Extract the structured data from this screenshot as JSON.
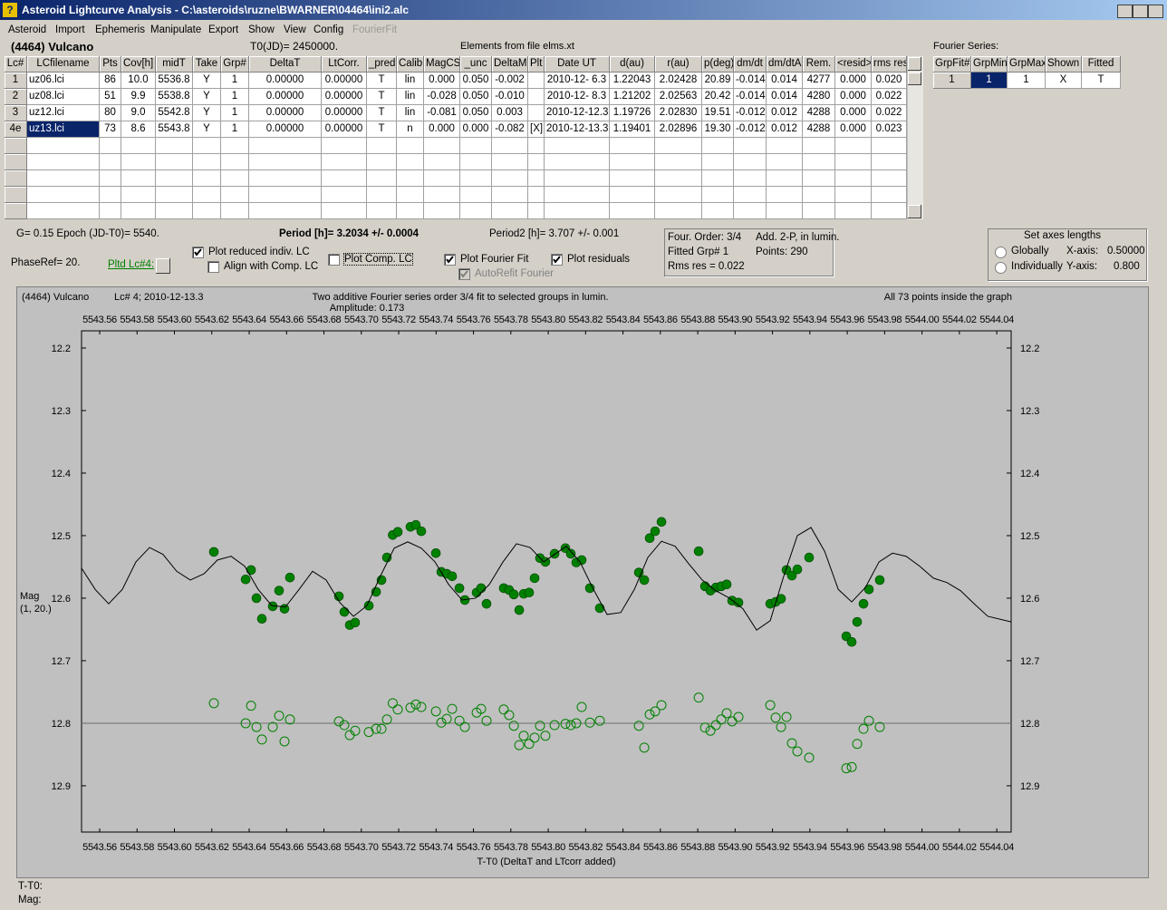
{
  "window": {
    "title": "Asteroid Lightcurve Analysis - C:\\asteroids\\ruzne\\BWARNER\\04464\\ini2.alc"
  },
  "menu": [
    "Asteroid",
    "Import",
    "Ephemeris",
    "Manipulate",
    "Export",
    "Show",
    "View",
    "Config",
    "FourierFit"
  ],
  "header": {
    "asteroid": "(4464) Vulcano",
    "t0": "T0(JD)= 2450000.",
    "elements": "Elements from file elms.xt"
  },
  "table": {
    "columns": [
      "Lc#",
      "LCfilename",
      "Pts",
      "Cov[h]",
      "midT",
      "Take",
      "Grp#",
      "DeltaT",
      "LtCorr.",
      "_pred",
      "Calib",
      "MagCS",
      "_unc",
      "DeltaM",
      "Plt",
      "Date UT",
      "d(au)",
      "r(au)",
      "p(deg)",
      "dm/dt",
      "dm/dtA",
      "Rem.",
      "<resid>",
      "rms res"
    ],
    "rows": [
      [
        "1",
        "uz06.lci",
        "86",
        "10.0",
        "5536.8",
        "Y",
        "1",
        "0.00000",
        "0.00000",
        "T",
        "lin",
        "0.000",
        "0.050",
        "-0.002",
        null,
        "2010-12- 6.3",
        "1.22043",
        "2.02428",
        "20.89",
        "-0.014",
        "0.014",
        "4277",
        "0.000",
        "0.020"
      ],
      [
        "2",
        "uz08.lci",
        "51",
        "9.9",
        "5538.8",
        "Y",
        "1",
        "0.00000",
        "0.00000",
        "T",
        "lin",
        "-0.028",
        "0.050",
        "-0.010",
        null,
        "2010-12- 8.3",
        "1.21202",
        "2.02563",
        "20.42",
        "-0.014",
        "0.014",
        "4280",
        "0.000",
        "0.022"
      ],
      [
        "3",
        "uz12.lci",
        "80",
        "9.0",
        "5542.8",
        "Y",
        "1",
        "0.00000",
        "0.00000",
        "T",
        "lin",
        "-0.081",
        "0.050",
        "0.003",
        null,
        "2010-12-12.3",
        "1.19726",
        "2.02830",
        "19.51",
        "-0.012",
        "0.012",
        "4288",
        "0.000",
        "0.022"
      ],
      [
        "4e",
        "uz13.lci",
        "73",
        "8.6",
        "5543.8",
        "Y",
        "1",
        "0.00000",
        "0.00000",
        "T",
        "n",
        "0.000",
        "0.000",
        "-0.082",
        "[X]",
        "2010-12-13.3",
        "1.19401",
        "2.02896",
        "19.30",
        "-0.012",
        "0.012",
        "4288",
        "0.000",
        "0.023"
      ]
    ]
  },
  "fourier": {
    "title": "Fourier Series:",
    "columns": [
      "GrpFit#",
      "GrpMin",
      "GrpMax",
      "Shown",
      "Fitted"
    ],
    "rows": [
      [
        "1",
        "1",
        "1",
        "X",
        "T"
      ]
    ]
  },
  "controls": {
    "g_epoch": "G= 0.15   Epoch (JD-T0)= 5540.",
    "period": "Period [h]= 3.2034 +/- 0.0004",
    "period2": "Period2 [h]= 3.707 +/- 0.001",
    "phaseref": "PhaseRef= 20.",
    "pltd": "Pltd Lc#4:",
    "checkboxes": [
      {
        "label": "Plot reduced indiv. LC",
        "checked": true
      },
      {
        "label": "Align with Comp. LC",
        "checked": false
      },
      {
        "label": "Plot Comp. LC",
        "checked": false
      },
      {
        "label": "Plot Fourier Fit",
        "checked": true
      },
      {
        "label": "Plot residuals",
        "checked": true
      },
      {
        "label": "AutoRefit Fourier",
        "checked": true
      }
    ]
  },
  "info": [
    "Four. Order:  3/4",
    "Add. 2-P, in lumin.",
    "Fitted Grp# 1",
    "Points: 290",
    "Rms res     = 0.022"
  ],
  "axes_box": {
    "title": "Set axes lengths",
    "globally": "Globally",
    "individually": "Individually",
    "x_label": "X-axis:",
    "x_value": "0.50000",
    "y_label": "Y-axis:",
    "y_value": "0.800"
  },
  "chart_data": {
    "type": "scatter",
    "title": "Two additive Fourier series order 3/4 fit to selected groups in lumin.",
    "subtitle": "Amplitude: 0.173",
    "annotations": [
      "(4464) Vulcano",
      "Lc# 4; 2010-12-13.3",
      "All 73 points inside the graph"
    ],
    "y_label": [
      "Mag",
      "(1, 20.)"
    ],
    "x_label": "T-T0 (DeltaT and LTcorr added)",
    "xlim": [
      5543.5503,
      5544.0477
    ],
    "ylim": [
      12.1725,
      12.974
    ],
    "y_inverted": true,
    "xticks": [
      5543.56,
      5543.58,
      {
        "value": 5543.6,
        "label": "5543.60"
      },
      5543.62,
      5543.64,
      5543.66,
      5543.68,
      {
        "value": 5543.7,
        "label": "5543.70"
      },
      5543.72,
      5543.74,
      5543.76,
      5543.78,
      {
        "value": 5543.8,
        "label": "5543.80"
      },
      5543.82,
      5543.84,
      5543.86,
      5543.88,
      {
        "value": 5543.9,
        "label": "5543.90"
      },
      5543.92,
      5543.94,
      5543.96,
      5543.98,
      {
        "value": 5544.0,
        "label": "5544.00"
      },
      5544.02,
      5544.04
    ],
    "yticks": [
      12.2,
      12.3,
      12.4,
      12.5,
      12.6,
      12.7,
      12.8,
      12.9
    ],
    "reference_line": 12.8,
    "series": [
      {
        "style": "filled",
        "color": "#008000",
        "x": [
          5543.6211,
          5543.6381,
          5543.641,
          5543.6439,
          5543.6468,
          5543.6526,
          5543.656,
          5543.6589,
          5543.6618,
          5543.688,
          5543.6909,
          5543.6938,
          5543.6967,
          5543.704,
          5543.7079,
          5543.7108,
          5543.7137,
          5543.7168,
          5543.7195,
          5543.7263,
          5543.7292,
          5543.7321,
          5543.7399,
          5543.7428,
          5543.7457,
          5543.7486,
          5543.7525,
          5543.7554,
          5543.7617,
          5543.7641,
          5543.767,
          5543.7762,
          5543.7791,
          5543.7816,
          5543.7845,
          5543.7869,
          5543.7898,
          5543.7927,
          5543.7956,
          5543.7985,
          5543.8034,
          5543.8092,
          5543.8121,
          5543.815,
          5543.8179,
          5543.8223,
          5543.8276,
          5543.8485,
          5543.8514,
          5543.8543,
          5543.8572,
          5543.8606,
          5543.8805,
          5543.8839,
          5543.8868,
          5543.8897,
          5543.8926,
          5543.8955,
          5543.8984,
          5543.9018,
          5543.9188,
          5543.9217,
          5543.9246,
          5543.9275,
          5543.9304,
          5543.9333,
          5543.9396,
          5543.9595,
          5543.9624,
          5543.9653,
          5543.9687,
          5543.9716,
          5543.9774
        ],
        "values": [
          12.526,
          12.57,
          12.555,
          12.6,
          12.633,
          12.613,
          12.588,
          12.617,
          12.567,
          12.597,
          12.622,
          12.643,
          12.639,
          12.612,
          12.59,
          12.571,
          12.535,
          12.499,
          12.494,
          12.486,
          12.483,
          12.493,
          12.528,
          12.558,
          12.561,
          12.565,
          12.584,
          12.603,
          12.591,
          12.584,
          12.609,
          12.584,
          12.587,
          12.594,
          12.619,
          12.593,
          12.591,
          12.568,
          12.536,
          12.542,
          12.529,
          12.52,
          12.529,
          12.543,
          12.539,
          12.584,
          12.616,
          12.559,
          12.571,
          12.504,
          12.493,
          12.478,
          12.525,
          12.581,
          12.588,
          12.583,
          12.581,
          12.578,
          12.604,
          12.607,
          12.609,
          12.606,
          12.601,
          12.555,
          12.564,
          12.554,
          12.535,
          12.661,
          12.67,
          12.638,
          12.609,
          12.586,
          12.571
        ]
      },
      {
        "style": "hollow",
        "color": "#008000",
        "x": [
          5543.6211,
          5543.6381,
          5543.641,
          5543.6439,
          5543.6468,
          5543.6526,
          5543.656,
          5543.6589,
          5543.6618,
          5543.688,
          5543.6909,
          5543.6938,
          5543.6967,
          5543.704,
          5543.7079,
          5543.7108,
          5543.7137,
          5543.7168,
          5543.7195,
          5543.7263,
          5543.7292,
          5543.7321,
          5543.7399,
          5543.7428,
          5543.7457,
          5543.7486,
          5543.7525,
          5543.7554,
          5543.7617,
          5543.7641,
          5543.767,
          5543.7762,
          5543.7791,
          5543.7816,
          5543.7845,
          5543.7869,
          5543.7898,
          5543.7927,
          5543.7956,
          5543.7985,
          5543.8034,
          5543.8092,
          5543.8121,
          5543.815,
          5543.8179,
          5543.8223,
          5543.8276,
          5543.8485,
          5543.8514,
          5543.8543,
          5543.8572,
          5543.8606,
          5543.8805,
          5543.8839,
          5543.8868,
          5543.8897,
          5543.8926,
          5543.8955,
          5543.8984,
          5543.9018,
          5543.9188,
          5543.9217,
          5543.9246,
          5543.9275,
          5543.9304,
          5543.9333,
          5543.9396,
          5543.9595,
          5543.9624,
          5543.9653,
          5543.9687,
          5543.9716,
          5543.9774
        ],
        "values": [
          12.768,
          12.8,
          12.772,
          12.806,
          12.826,
          12.806,
          12.788,
          12.829,
          12.794,
          12.797,
          12.803,
          12.819,
          12.812,
          12.814,
          12.809,
          12.809,
          12.794,
          12.768,
          12.778,
          12.775,
          12.77,
          12.774,
          12.781,
          12.799,
          12.793,
          12.777,
          12.796,
          12.806,
          12.783,
          12.777,
          12.796,
          12.778,
          12.787,
          12.804,
          12.835,
          12.82,
          12.833,
          12.823,
          12.804,
          12.82,
          12.803,
          12.801,
          12.803,
          12.8,
          12.774,
          12.799,
          12.796,
          12.804,
          12.839,
          12.786,
          12.781,
          12.771,
          12.759,
          12.807,
          12.812,
          12.803,
          12.794,
          12.784,
          12.797,
          12.79,
          12.771,
          12.791,
          12.806,
          12.79,
          12.832,
          12.845,
          12.855,
          12.872,
          12.87,
          12.833,
          12.809,
          12.796,
          12.806
        ]
      },
      {
        "style": "line",
        "color": "#000000",
        "x": [
          5543.5503,
          5543.5576,
          5543.5648,
          5543.5721,
          5543.5794,
          5543.5867,
          5543.5939,
          5543.6012,
          5543.6085,
          5543.6158,
          5543.623,
          5543.6303,
          5543.6376,
          5543.6448,
          5543.6521,
          5543.6594,
          5543.6667,
          5543.6739,
          5543.6812,
          5543.6885,
          5543.6958,
          5543.703,
          5543.7103,
          5543.7176,
          5543.7248,
          5543.7321,
          5543.7394,
          5543.7467,
          5543.7539,
          5543.7612,
          5543.7685,
          5543.7758,
          5543.783,
          5543.7903,
          5543.7976,
          5543.8034,
          5543.8097,
          5543.817,
          5543.8242,
          5543.8315,
          5543.8388,
          5543.8461,
          5543.8533,
          5543.8606,
          5543.8679,
          5543.8752,
          5543.8824,
          5543.8897,
          5543.897,
          5543.9042,
          5543.9115,
          5543.9188,
          5543.9261,
          5543.9333,
          5543.9406,
          5543.9479,
          5543.9552,
          5543.9624,
          5543.9697,
          5543.977,
          5543.9842,
          5543.9915,
          5543.9988,
          5544.0061,
          5544.0133,
          5544.0206,
          5544.0279,
          5544.0352,
          5544.0477
        ],
        "values": [
          12.552,
          12.586,
          12.609,
          12.586,
          12.542,
          12.519,
          12.53,
          12.557,
          12.571,
          12.561,
          12.539,
          12.533,
          12.549,
          12.586,
          12.612,
          12.614,
          12.586,
          12.557,
          12.571,
          12.607,
          12.629,
          12.612,
          12.564,
          12.52,
          12.51,
          12.52,
          12.542,
          12.578,
          12.603,
          12.6,
          12.578,
          12.542,
          12.513,
          12.519,
          12.542,
          12.53,
          12.517,
          12.542,
          12.586,
          12.626,
          12.623,
          12.586,
          12.535,
          12.509,
          12.517,
          12.545,
          12.571,
          12.588,
          12.6,
          12.617,
          12.651,
          12.636,
          12.564,
          12.5,
          12.487,
          12.525,
          12.586,
          12.606,
          12.583,
          12.542,
          12.528,
          12.533,
          12.549,
          12.568,
          12.575,
          12.588,
          12.609,
          12.629,
          12.638
        ]
      }
    ]
  },
  "status": {
    "t": "T-T0:",
    "mag": "Mag:"
  }
}
